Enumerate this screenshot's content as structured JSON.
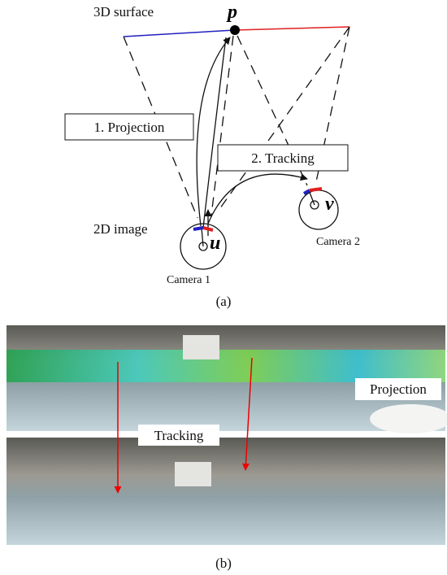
{
  "diagram": {
    "surface_label": "3D surface",
    "point_label": "p",
    "projection_box": "1. Projection",
    "tracking_box": "2. Tracking",
    "image_label": "2D image",
    "u_label": "u",
    "v_label": "v",
    "camera1": "Camera 1",
    "camera2": "Camera 2",
    "caption": "(a)"
  },
  "photos": {
    "projection_label": "Projection",
    "tracking_label": "Tracking",
    "caption": "(b)"
  }
}
